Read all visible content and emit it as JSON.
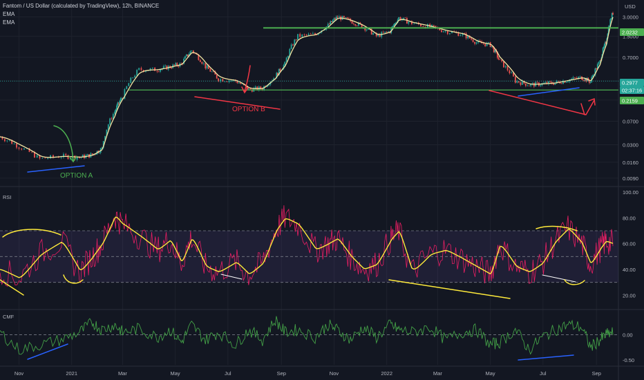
{
  "header": {
    "title": "Fantom / US Dollar (calculated by TradingView), 12h, BINANCE",
    "ema1": "EMA",
    "ema2": "EMA",
    "currency": "USD"
  },
  "colors": {
    "background": "#131722",
    "candle_up": "#26a69a",
    "candle_down": "#ef5350",
    "ema_fast": "#f5e6a3",
    "resistance_line": "#4caf50",
    "support_line": "#4caf50",
    "divergence_blue": "#2962ff",
    "divergence_red": "#f23645",
    "rsi_line": "#e91e63",
    "rsi_ma": "#ffeb3b",
    "rsi_band": "#7e57c2",
    "cmf_line": "#43a047"
  },
  "chart_data": [
    {
      "type": "line",
      "pane": "price",
      "scale": "log",
      "ylim": [
        0.007,
        5.0
      ],
      "y_ticks": [
        "3.0000",
        "1.5000",
        "0.7000",
        "0.3000",
        "0.1500",
        "0.0700",
        "0.0300",
        "0.0160",
        "0.0090"
      ],
      "y_tick_values": [
        3.0,
        1.5,
        0.7,
        0.3,
        0.15,
        0.07,
        0.03,
        0.016,
        0.009
      ],
      "price_tags": [
        {
          "label": "2.0232",
          "value": 2.0232,
          "color": "#4caf50"
        },
        {
          "label": "0.2977",
          "value": 0.2977,
          "color": "#26a69a"
        },
        {
          "label": "02:37:16",
          "value": 0.255,
          "color": "#26a69a"
        },
        {
          "label": "0.2159",
          "value": 0.2159,
          "color": "#4caf50"
        }
      ],
      "x": [
        "2020-10-10",
        "2020-11-01",
        "2020-11-25",
        "2020-12-20",
        "2021-01-10",
        "2021-01-25",
        "2021-02-05",
        "2021-02-20",
        "2021-03-01",
        "2021-03-20",
        "2021-04-10",
        "2021-04-25",
        "2021-05-08",
        "2021-05-20",
        "2021-06-05",
        "2021-06-20",
        "2021-07-10",
        "2021-07-25",
        "2021-08-10",
        "2021-08-25",
        "2021-09-05",
        "2021-09-20",
        "2021-10-10",
        "2021-10-25",
        "2021-11-05",
        "2021-11-20",
        "2021-12-05",
        "2021-12-20",
        "2022-01-05",
        "2022-01-15",
        "2022-01-30",
        "2022-02-20",
        "2022-03-10",
        "2022-03-30",
        "2022-04-15",
        "2022-05-01",
        "2022-05-12",
        "2022-05-30",
        "2022-06-15",
        "2022-06-30",
        "2022-07-15",
        "2022-07-30",
        "2022-08-15",
        "2022-08-25",
        "2022-09-05",
        "2022-09-12",
        "2022-09-20"
      ],
      "series": [
        {
          "values": [
            0.04,
            0.028,
            0.018,
            0.02,
            0.019,
            0.021,
            0.026,
            0.1,
            0.17,
            0.45,
            0.45,
            0.5,
            0.55,
            0.9,
            0.5,
            0.32,
            0.3,
            0.22,
            0.23,
            0.35,
            0.55,
            1.5,
            1.6,
            2.2,
            3.0,
            2.6,
            2.1,
            1.5,
            1.8,
            2.9,
            2.4,
            2.1,
            1.8,
            1.6,
            1.2,
            1.1,
            0.6,
            0.3,
            0.26,
            0.27,
            0.28,
            0.31,
            0.34,
            0.29,
            0.6,
            1.2,
            3.5
          ]
        }
      ],
      "levels": [
        {
          "name": "",
          "value": 2.0232
        },
        {
          "name": "",
          "value": 0.2159
        }
      ],
      "annotations": [
        "OPTION A",
        "OPTION B"
      ]
    },
    {
      "type": "line",
      "pane": "rsi",
      "label": "RSI",
      "ylim": [
        10,
        100
      ],
      "y_ticks": [
        "100.00",
        "80.00",
        "60.00",
        "40.00",
        "20.00"
      ],
      "y_tick_values": [
        100,
        80,
        60,
        40,
        20
      ],
      "band": [
        30,
        70
      ],
      "midline": 50,
      "x": [
        "2020-10-10",
        "2020-11-01",
        "2020-11-25",
        "2020-12-20",
        "2021-01-10",
        "2021-01-25",
        "2021-02-05",
        "2021-02-20",
        "2021-03-01",
        "2021-03-20",
        "2021-04-10",
        "2021-04-25",
        "2021-05-08",
        "2021-05-20",
        "2021-06-05",
        "2021-06-20",
        "2021-07-10",
        "2021-07-25",
        "2021-08-10",
        "2021-08-25",
        "2021-09-05",
        "2021-09-20",
        "2021-10-10",
        "2021-10-25",
        "2021-11-05",
        "2021-11-20",
        "2021-12-05",
        "2021-12-20",
        "2022-01-05",
        "2022-01-15",
        "2022-01-30",
        "2022-02-20",
        "2022-03-10",
        "2022-03-30",
        "2022-04-15",
        "2022-05-01",
        "2022-05-12",
        "2022-05-30",
        "2022-06-15",
        "2022-06-30",
        "2022-07-15",
        "2022-07-30",
        "2022-08-15",
        "2022-08-25",
        "2022-09-05",
        "2022-09-12",
        "2022-09-20"
      ],
      "series": [
        {
          "values": [
            40,
            33,
            52,
            62,
            38,
            50,
            60,
            82,
            75,
            66,
            55,
            63,
            45,
            65,
            42,
            38,
            46,
            36,
            45,
            70,
            80,
            75,
            55,
            60,
            64,
            50,
            40,
            44,
            63,
            70,
            38,
            52,
            55,
            48,
            42,
            36,
            60,
            42,
            38,
            45,
            62,
            72,
            60,
            44,
            56,
            62,
            60
          ]
        }
      ]
    },
    {
      "type": "line",
      "pane": "cmf",
      "label": "CMF",
      "ylim": [
        -0.6,
        0.45
      ],
      "y_ticks": [
        "0.00",
        "-0.50"
      ],
      "y_tick_values": [
        0,
        -0.5
      ],
      "x": [
        "2020-10-10",
        "2020-11-01",
        "2020-11-25",
        "2020-12-20",
        "2021-01-10",
        "2021-01-25",
        "2021-02-05",
        "2021-02-20",
        "2021-03-01",
        "2021-03-20",
        "2021-04-10",
        "2021-04-25",
        "2021-05-08",
        "2021-05-20",
        "2021-06-05",
        "2021-06-20",
        "2021-07-10",
        "2021-07-25",
        "2021-08-10",
        "2021-08-25",
        "2021-09-05",
        "2021-09-20",
        "2021-10-10",
        "2021-10-25",
        "2021-11-05",
        "2021-11-20",
        "2021-12-05",
        "2021-12-20",
        "2022-01-05",
        "2022-01-15",
        "2022-01-30",
        "2022-02-20",
        "2022-03-10",
        "2022-03-30",
        "2022-04-15",
        "2022-05-01",
        "2022-05-12",
        "2022-05-30",
        "2022-06-15",
        "2022-06-30",
        "2022-07-15",
        "2022-07-30",
        "2022-08-15",
        "2022-08-25",
        "2022-09-05",
        "2022-09-12",
        "2022-09-20"
      ],
      "series": [
        {
          "values": [
            0.05,
            -0.3,
            -0.2,
            -0.1,
            0.05,
            0.25,
            0.1,
            0.2,
            0.05,
            0.12,
            -0.05,
            0.1,
            -0.15,
            0.2,
            -0.1,
            0.05,
            -0.2,
            0.1,
            -0.1,
            0.3,
            0.05,
            0.1,
            -0.05,
            0.2,
            0.1,
            -0.1,
            0.15,
            -0.05,
            0.2,
            0.1,
            0.05,
            0.15,
            -0.1,
            0.05,
            0.1,
            -0.2,
            -0.15,
            0.1,
            -0.3,
            -0.05,
            0.1,
            0.2,
            0.15,
            -0.25,
            -0.1,
            0.0,
            0.05
          ]
        }
      ]
    }
  ],
  "x_axis_labels": [
    "Nov",
    "2021",
    "Mar",
    "May",
    "Jul",
    "Sep",
    "Nov",
    "2022",
    "Mar",
    "May",
    "Jul",
    "Sep"
  ]
}
